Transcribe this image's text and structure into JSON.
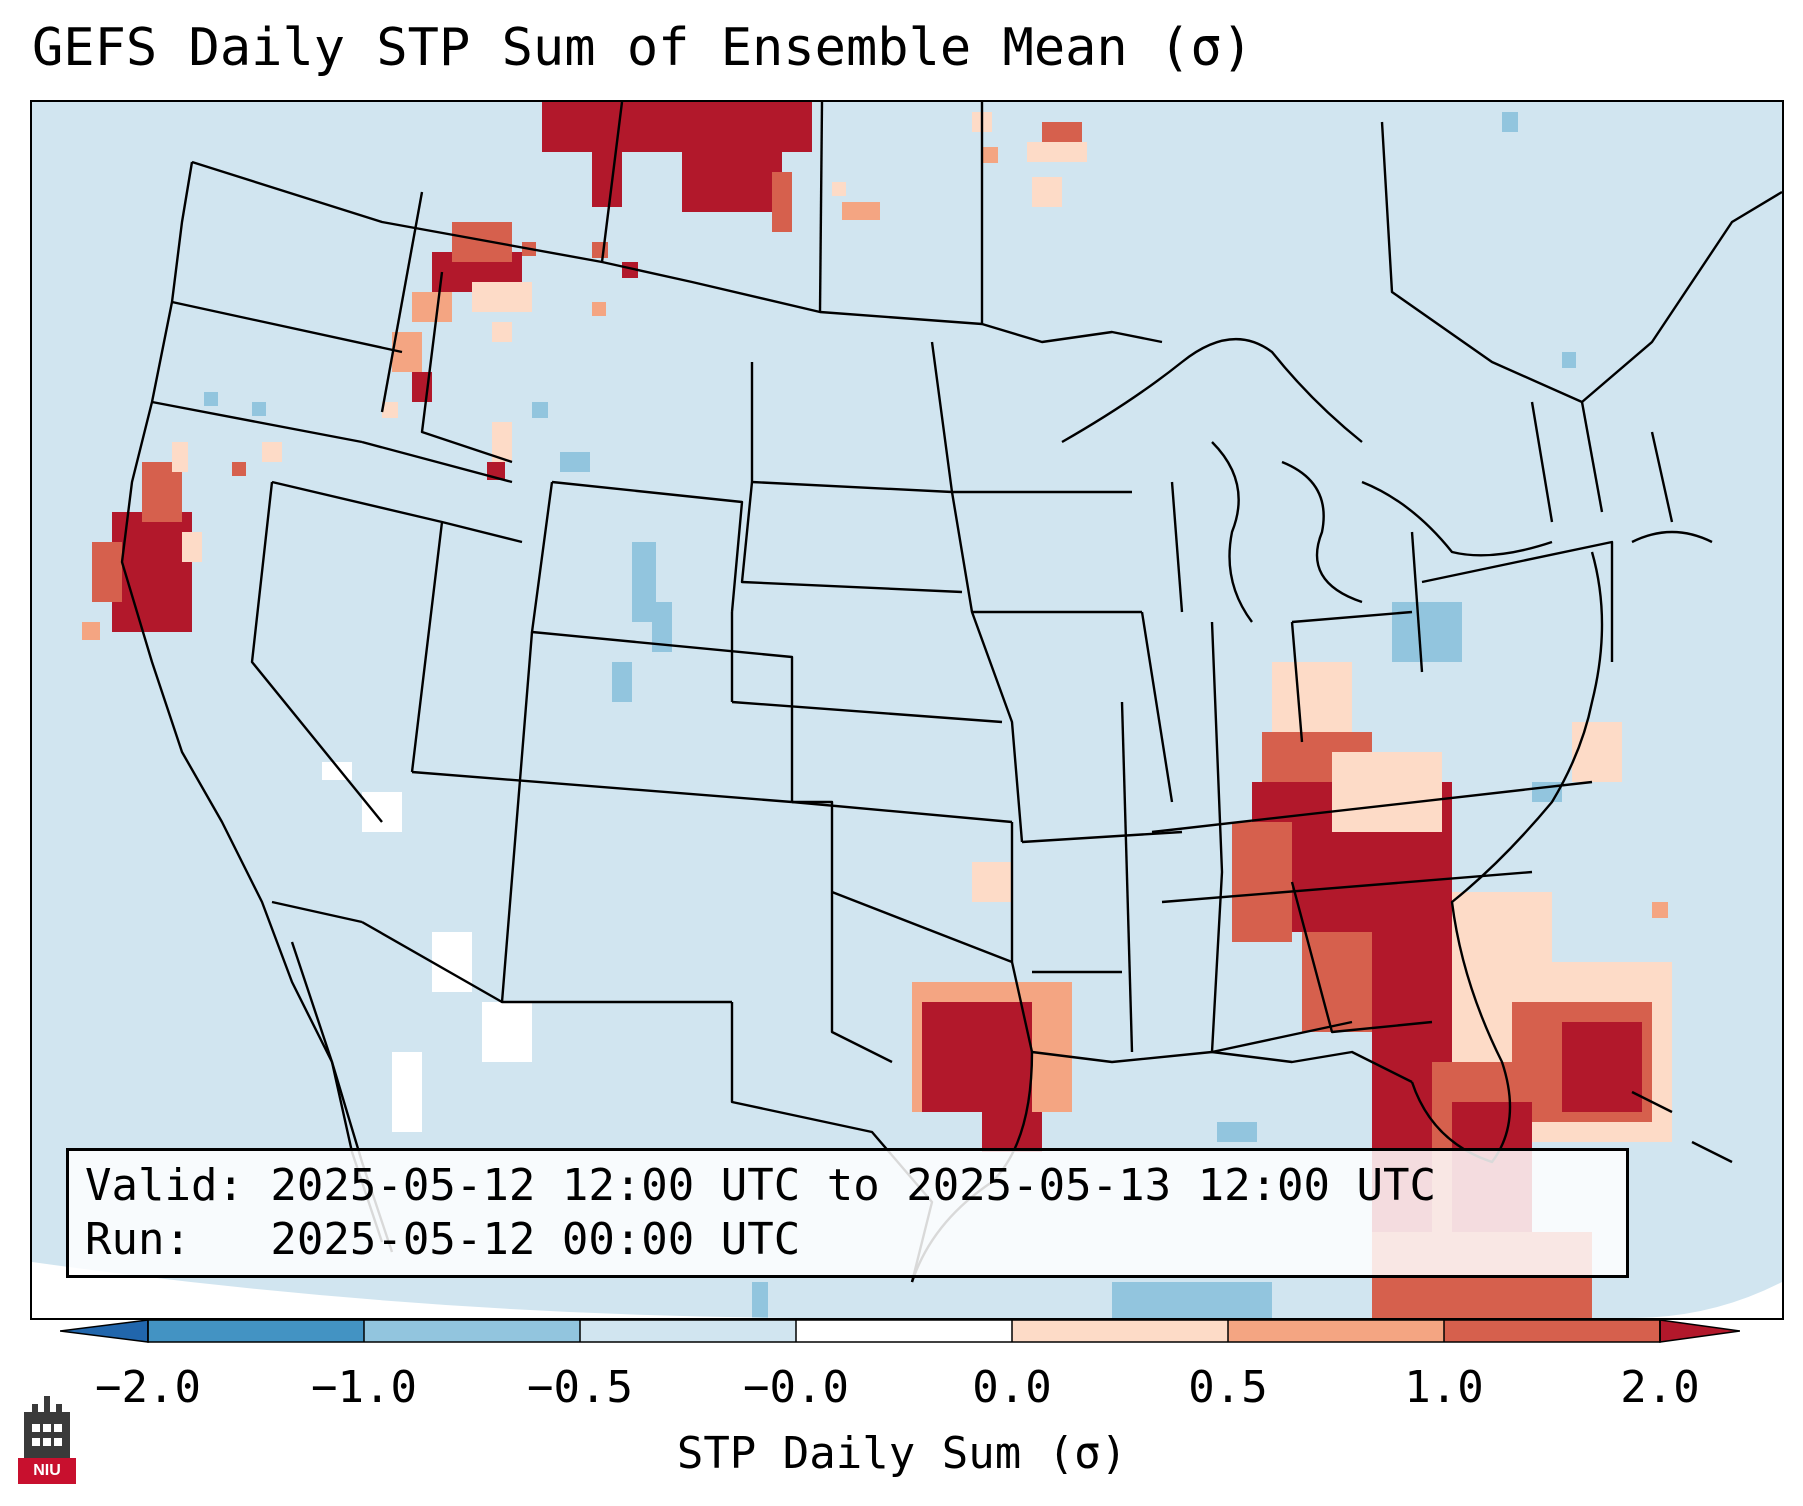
{
  "title": "GEFS Daily STP Sum of Ensemble Mean (σ)",
  "info": {
    "valid_line": "Valid: 2025-05-12 12:00 UTC to 2025-05-13 12:00 UTC",
    "run_line": "Run:   2025-05-12 00:00 UTC"
  },
  "colorbar": {
    "label": "STP Daily Sum (σ)",
    "ticks": [
      "−2.0",
      "−1.0",
      "−0.5",
      "−0.0",
      "0.0",
      "0.5",
      "1.0",
      "2.0"
    ],
    "colors": [
      "#2166ac",
      "#4393c3",
      "#92c5de",
      "#d1e5f0",
      "#ffffff",
      "#fddbc7",
      "#f4a582",
      "#d6604d",
      "#b2182b"
    ]
  },
  "logo": {
    "text": "NIU"
  },
  "map": {
    "background_color": "#d1e5f0",
    "line_color": "#000000"
  }
}
